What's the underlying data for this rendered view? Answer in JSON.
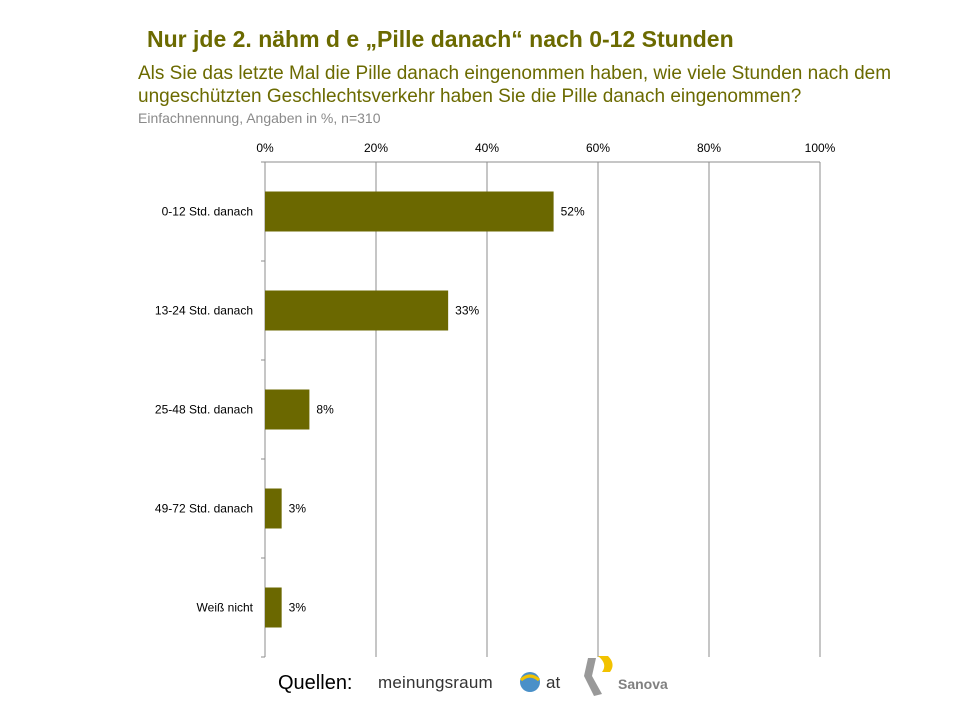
{
  "header": {
    "title": "Nur jde   2. nähm d e „Pille danach“ nach 0-12 Stunden",
    "question_line1": "Als Sie das letzte Mal die Pille danach eingenommen haben, wie viele Stunden nach dem",
    "question_line2": "ungeschützten Geschlechtsverkehr haben Sie die Pille danach eingenommen?",
    "subtitle": "Einfachnennung, Angaben in %, n=310"
  },
  "chart_data": {
    "type": "bar",
    "orientation": "horizontal",
    "categories": [
      "0-12 Std. danach",
      "13-24 Std. danach",
      "25-48 Std. danach",
      "49-72 Std. danach",
      "Weiß nicht"
    ],
    "values": [
      52,
      33,
      8,
      3,
      3
    ],
    "value_labels": [
      "52%",
      "33%",
      "8%",
      "3%",
      "3%"
    ],
    "xlim": [
      0,
      100
    ],
    "x_ticks": [
      0,
      20,
      40,
      60,
      80,
      100
    ],
    "x_tick_labels": [
      "0%",
      "20%",
      "40%",
      "60%",
      "80%",
      "100%"
    ],
    "x_axis_position": "top",
    "grid": true,
    "bar_color": "#6b6800"
  },
  "footer": {
    "sources_label": "Quellen:",
    "logo1_text": "meinungsraum",
    "logo1_suffix": "at",
    "logo2_text": "Sanova"
  }
}
